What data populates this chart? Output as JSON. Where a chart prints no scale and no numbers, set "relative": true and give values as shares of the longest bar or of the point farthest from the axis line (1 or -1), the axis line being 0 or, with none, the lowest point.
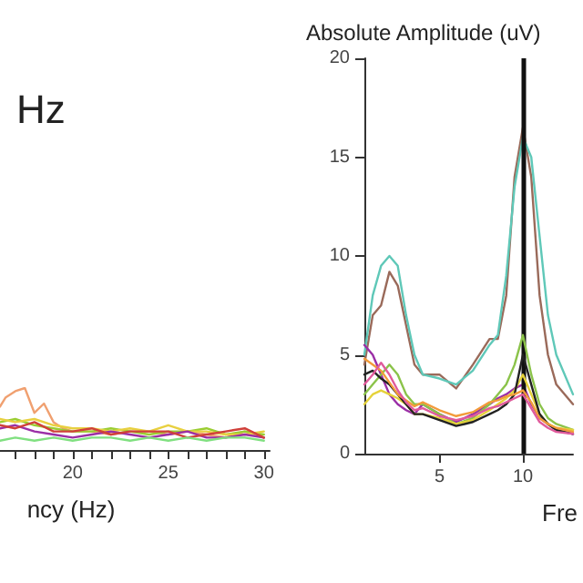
{
  "chart_data": [
    {
      "type": "line",
      "title": "Hz",
      "xlabel": "ncy (Hz)",
      "relative": true,
      "xlim": [
        16.2,
        30.3
      ],
      "xticks": [
        {
          "value": 17,
          "label": null
        },
        {
          "value": 18,
          "label": null
        },
        {
          "value": 19,
          "label": null
        },
        20,
        {
          "value": 21,
          "label": null
        },
        {
          "value": 22,
          "label": null
        },
        {
          "value": 23,
          "label": null
        },
        {
          "value": 24,
          "label": null
        },
        25,
        {
          "value": 26,
          "label": null
        },
        {
          "value": 27,
          "label": null
        },
        {
          "value": 28,
          "label": null
        },
        {
          "value": 29,
          "label": null
        },
        30
      ],
      "grid": false,
      "marker": "none",
      "line_style": "solid",
      "tick_labels": "x",
      "series": [
        {
          "color": "#f0a070",
          "x": [
            16.2,
            16.5,
            17,
            17.5,
            18,
            18.5,
            19,
            19.5,
            20,
            21,
            22,
            23,
            24,
            25,
            26,
            27,
            28,
            29,
            30
          ],
          "values": [
            0.7,
            0.85,
            0.95,
            1.0,
            0.6,
            0.75,
            0.45,
            0.35,
            0.3,
            0.3,
            0.25,
            0.3,
            0.3,
            0.25,
            0.3,
            0.25,
            0.2,
            0.3,
            0.2
          ]
        },
        {
          "color": "#9acd32",
          "x": [
            16.2,
            17,
            18,
            19,
            20,
            21,
            22,
            23,
            24,
            25,
            26,
            27,
            28,
            29,
            30
          ],
          "values": [
            0.45,
            0.5,
            0.4,
            0.35,
            0.3,
            0.3,
            0.35,
            0.3,
            0.25,
            0.3,
            0.3,
            0.35,
            0.25,
            0.3,
            0.25
          ]
        },
        {
          "color": "#e8d040",
          "x": [
            16.2,
            17,
            18,
            19,
            20,
            21,
            22,
            23,
            24,
            25,
            26,
            27,
            28,
            29,
            30
          ],
          "values": [
            0.5,
            0.45,
            0.5,
            0.4,
            0.35,
            0.35,
            0.3,
            0.35,
            0.3,
            0.4,
            0.3,
            0.3,
            0.25,
            0.25,
            0.3
          ]
        },
        {
          "color": "#9b2fa6",
          "x": [
            16.2,
            17,
            18,
            19,
            20,
            21,
            22,
            23,
            24,
            25,
            26,
            27,
            28,
            29,
            30
          ],
          "values": [
            0.35,
            0.4,
            0.3,
            0.25,
            0.2,
            0.25,
            0.3,
            0.25,
            0.2,
            0.25,
            0.3,
            0.2,
            0.2,
            0.25,
            0.2
          ]
        },
        {
          "color": "#d0403a",
          "x": [
            16.2,
            17,
            18,
            19,
            20,
            21,
            22,
            23,
            24,
            25,
            26,
            27,
            28,
            29,
            30
          ],
          "values": [
            0.4,
            0.35,
            0.45,
            0.3,
            0.3,
            0.35,
            0.25,
            0.3,
            0.3,
            0.3,
            0.2,
            0.25,
            0.3,
            0.35,
            0.2
          ]
        },
        {
          "color": "#80e080",
          "x": [
            16.2,
            17,
            18,
            19,
            20,
            21,
            22,
            23,
            24,
            25,
            26,
            27,
            28,
            29,
            30
          ],
          "values": [
            0.15,
            0.2,
            0.15,
            0.2,
            0.15,
            0.2,
            0.2,
            0.15,
            0.2,
            0.15,
            0.2,
            0.15,
            0.2,
            0.2,
            0.15
          ]
        }
      ]
    },
    {
      "type": "line",
      "ylabel": "Absolute Amplitude (uV)",
      "xlabel": "Fre",
      "xlim": [
        0.5,
        13
      ],
      "xticks": [
        5,
        10
      ],
      "ylim": [
        0,
        20
      ],
      "yticks": [
        0,
        5,
        10,
        15,
        20
      ],
      "grid": false,
      "marker": "none",
      "line_style": "solid",
      "ref_lines": [
        {
          "axis": "x",
          "value": 10,
          "color": "#111111"
        }
      ],
      "x": [
        0.5,
        1,
        1.5,
        2,
        2.5,
        3,
        3.5,
        4,
        5,
        6,
        7,
        8,
        8.5,
        9,
        9.5,
        10,
        10.5,
        11,
        11.5,
        12,
        13
      ],
      "series": [
        {
          "color": "#9a6a5a",
          "values": [
            4.5,
            7,
            7.5,
            9.2,
            8.5,
            6.5,
            4.5,
            4,
            4,
            3.3,
            4.5,
            5.8,
            5.8,
            8,
            14,
            16.5,
            14,
            8,
            5,
            3.5,
            2.5
          ]
        },
        {
          "color": "#5fc8b8",
          "values": [
            5,
            8,
            9.5,
            10,
            9.5,
            7,
            5,
            4,
            3.8,
            3.5,
            4.2,
            5.5,
            6,
            9,
            13.5,
            16,
            15,
            11,
            7,
            5,
            3
          ]
        },
        {
          "color": "#9b2fa6",
          "values": [
            5.5,
            5,
            4,
            3,
            2.5,
            2.2,
            2,
            2.5,
            2,
            1.6,
            2,
            2.5,
            2.8,
            3,
            3.3,
            3.5,
            2.5,
            1.8,
            1.5,
            1.2,
            1
          ]
        },
        {
          "color": "#8bc34a",
          "values": [
            3,
            3.5,
            4,
            4.5,
            4,
            3,
            2.5,
            2.5,
            2,
            1.5,
            1.8,
            2.5,
            3,
            3.5,
            4.5,
            6,
            4,
            2.5,
            1.8,
            1.5,
            1.2
          ]
        },
        {
          "color": "#e5d23a",
          "values": [
            2.5,
            3,
            3.2,
            3,
            2.8,
            2.5,
            2,
            2,
            1.8,
            1.5,
            1.7,
            2.2,
            2.5,
            2.8,
            3.2,
            4,
            3,
            2,
            1.5,
            1.3,
            1.2
          ]
        },
        {
          "color": "#222222",
          "values": [
            4,
            4.2,
            3.8,
            3.5,
            3,
            2.5,
            2,
            2,
            1.7,
            1.4,
            1.6,
            2,
            2.2,
            2.5,
            3,
            5,
            3.5,
            2,
            1.5,
            1.2,
            1
          ]
        },
        {
          "color": "#f29b3a",
          "values": [
            4.8,
            4.5,
            4.2,
            3.6,
            3,
            2.7,
            2.4,
            2.6,
            2.2,
            1.9,
            2.1,
            2.6,
            2.7,
            2.9,
            3,
            3.2,
            2.6,
            1.8,
            1.5,
            1.3,
            1.1
          ]
        },
        {
          "color": "#e05a9b",
          "values": [
            3.5,
            4,
            4.6,
            4,
            3.2,
            2.6,
            2.2,
            2.3,
            1.9,
            1.7,
            1.9,
            2.3,
            2.4,
            2.6,
            2.8,
            3,
            2.3,
            1.6,
            1.3,
            1.1,
            1
          ]
        }
      ]
    }
  ]
}
